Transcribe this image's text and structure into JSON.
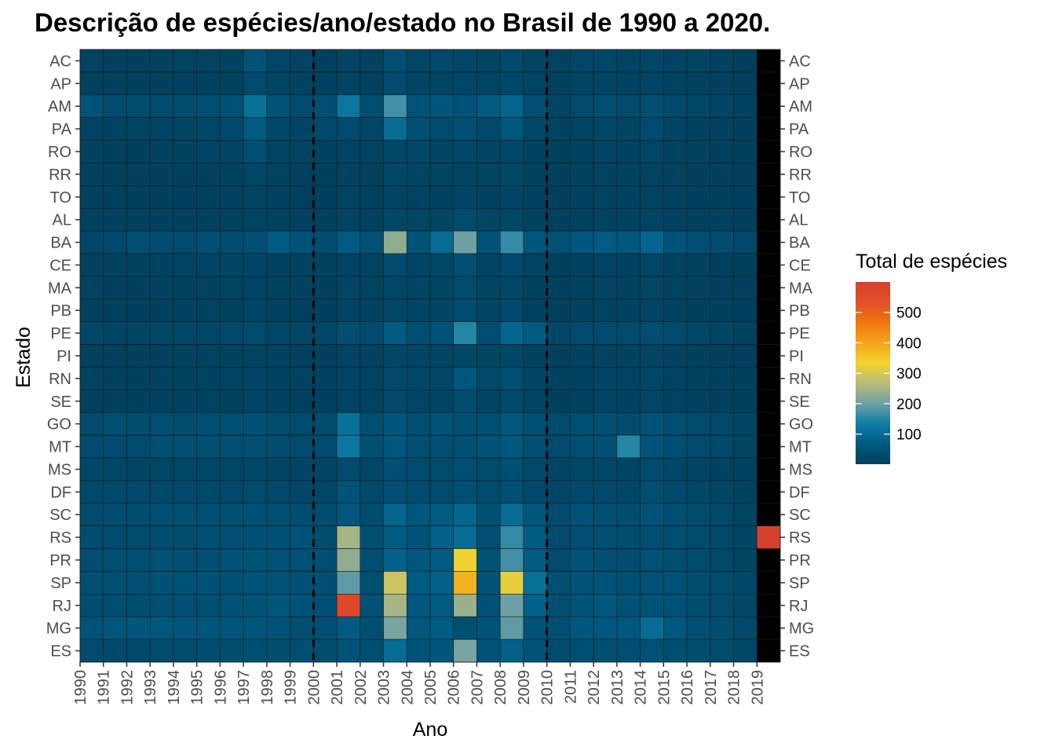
{
  "chart_data": {
    "type": "heatmap",
    "title": "Descrição de espécies/ano/estado no Brasil de 1990 a 2020.",
    "xlabel": "Ano",
    "ylabel": "Estado",
    "x": [
      "1990",
      "1991",
      "1992",
      "1993",
      "1994",
      "1995",
      "1996",
      "1997",
      "1998",
      "1999",
      "2000",
      "2001",
      "2002",
      "2003",
      "2004",
      "2005",
      "2006",
      "2007",
      "2008",
      "2009",
      "2010",
      "2011",
      "2012",
      "2013",
      "2014",
      "2015",
      "2016",
      "2017",
      "2018",
      "2019"
    ],
    "y": [
      "AC",
      "AP",
      "AM",
      "PA",
      "RO",
      "RR",
      "TO",
      "AL",
      "BA",
      "CE",
      "MA",
      "PB",
      "PE",
      "PI",
      "RN",
      "SE",
      "GO",
      "MT",
      "MS",
      "DF",
      "SC",
      "RS",
      "PR",
      "SP",
      "RJ",
      "MG",
      "ES"
    ],
    "values": [
      [
        8,
        6,
        6,
        8,
        9,
        10,
        10,
        50,
        20,
        12,
        6,
        15,
        8,
        40,
        20,
        25,
        20,
        15,
        25,
        15,
        10,
        20,
        20,
        12,
        20,
        12,
        15,
        8,
        4,
        null
      ],
      [
        5,
        5,
        5,
        5,
        6,
        7,
        8,
        30,
        15,
        8,
        6,
        12,
        6,
        30,
        15,
        12,
        20,
        12,
        20,
        12,
        5,
        12,
        15,
        10,
        12,
        10,
        8,
        6,
        3,
        null
      ],
      [
        50,
        30,
        35,
        30,
        35,
        40,
        45,
        110,
        50,
        30,
        40,
        120,
        40,
        170,
        50,
        60,
        50,
        70,
        90,
        40,
        15,
        30,
        40,
        30,
        40,
        25,
        20,
        15,
        10,
        null
      ],
      [
        12,
        10,
        12,
        12,
        15,
        18,
        25,
        70,
        20,
        15,
        25,
        30,
        20,
        100,
        40,
        30,
        40,
        25,
        60,
        20,
        10,
        12,
        20,
        15,
        30,
        15,
        10,
        8,
        5,
        null
      ],
      [
        8,
        6,
        6,
        8,
        10,
        12,
        15,
        40,
        12,
        10,
        8,
        12,
        10,
        20,
        20,
        15,
        20,
        15,
        20,
        10,
        5,
        10,
        12,
        10,
        15,
        10,
        8,
        6,
        5,
        null
      ],
      [
        5,
        5,
        5,
        5,
        6,
        7,
        10,
        20,
        10,
        6,
        6,
        8,
        6,
        20,
        15,
        12,
        15,
        12,
        20,
        8,
        5,
        8,
        10,
        8,
        10,
        8,
        6,
        5,
        4,
        null
      ],
      [
        5,
        5,
        5,
        5,
        6,
        7,
        8,
        10,
        8,
        6,
        6,
        10,
        6,
        15,
        12,
        10,
        15,
        10,
        15,
        8,
        5,
        8,
        10,
        8,
        10,
        8,
        6,
        5,
        4,
        null
      ],
      [
        5,
        5,
        5,
        5,
        6,
        7,
        8,
        10,
        8,
        6,
        6,
        12,
        6,
        20,
        15,
        15,
        30,
        15,
        20,
        10,
        5,
        8,
        10,
        8,
        12,
        8,
        6,
        5,
        4,
        null
      ],
      [
        20,
        25,
        40,
        35,
        30,
        40,
        35,
        40,
        70,
        50,
        35,
        70,
        45,
        230,
        50,
        100,
        200,
        50,
        160,
        60,
        45,
        60,
        70,
        60,
        90,
        50,
        40,
        35,
        25,
        null
      ],
      [
        8,
        8,
        8,
        10,
        12,
        12,
        15,
        15,
        10,
        8,
        8,
        12,
        10,
        30,
        15,
        20,
        40,
        15,
        25,
        12,
        6,
        10,
        12,
        10,
        15,
        10,
        8,
        6,
        5,
        null
      ],
      [
        8,
        6,
        6,
        8,
        10,
        10,
        12,
        12,
        10,
        8,
        6,
        15,
        10,
        20,
        15,
        15,
        30,
        15,
        20,
        10,
        6,
        10,
        12,
        10,
        15,
        10,
        8,
        6,
        5,
        null
      ],
      [
        5,
        5,
        6,
        6,
        8,
        8,
        10,
        12,
        8,
        6,
        6,
        12,
        8,
        20,
        15,
        15,
        30,
        15,
        25,
        10,
        5,
        8,
        10,
        8,
        12,
        8,
        6,
        5,
        4,
        null
      ],
      [
        20,
        15,
        15,
        20,
        20,
        20,
        25,
        30,
        20,
        20,
        20,
        40,
        30,
        70,
        40,
        50,
        150,
        40,
        90,
        70,
        20,
        30,
        30,
        30,
        40,
        30,
        20,
        15,
        10,
        null
      ],
      [
        5,
        5,
        5,
        6,
        8,
        8,
        10,
        10,
        8,
        6,
        6,
        12,
        8,
        20,
        15,
        15,
        20,
        15,
        20,
        10,
        5,
        8,
        10,
        8,
        12,
        8,
        6,
        5,
        4,
        null
      ],
      [
        8,
        6,
        6,
        8,
        10,
        10,
        12,
        15,
        10,
        8,
        8,
        15,
        10,
        25,
        20,
        20,
        60,
        25,
        40,
        15,
        8,
        10,
        15,
        12,
        20,
        12,
        8,
        6,
        5,
        null
      ],
      [
        6,
        6,
        6,
        8,
        8,
        8,
        10,
        12,
        8,
        6,
        6,
        12,
        8,
        25,
        15,
        15,
        35,
        15,
        25,
        12,
        6,
        10,
        12,
        10,
        15,
        10,
        8,
        6,
        5,
        null
      ],
      [
        30,
        40,
        35,
        40,
        35,
        40,
        40,
        45,
        35,
        30,
        30,
        110,
        40,
        60,
        40,
        50,
        40,
        40,
        60,
        40,
        30,
        40,
        40,
        30,
        50,
        40,
        30,
        25,
        15,
        null
      ],
      [
        30,
        30,
        30,
        40,
        40,
        40,
        40,
        40,
        35,
        30,
        30,
        120,
        40,
        60,
        40,
        40,
        40,
        50,
        60,
        40,
        30,
        40,
        40,
        150,
        50,
        40,
        30,
        25,
        15,
        null
      ],
      [
        20,
        20,
        15,
        20,
        20,
        20,
        20,
        20,
        15,
        15,
        15,
        30,
        20,
        40,
        30,
        30,
        40,
        30,
        40,
        25,
        15,
        20,
        20,
        15,
        30,
        20,
        15,
        10,
        8,
        null
      ],
      [
        25,
        25,
        25,
        25,
        25,
        25,
        25,
        30,
        25,
        20,
        20,
        50,
        25,
        40,
        30,
        30,
        40,
        30,
        40,
        25,
        20,
        25,
        25,
        20,
        35,
        25,
        20,
        15,
        10,
        null
      ],
      [
        30,
        35,
        35,
        40,
        40,
        40,
        40,
        45,
        40,
        35,
        35,
        60,
        35,
        90,
        60,
        70,
        90,
        45,
        100,
        60,
        30,
        50,
        40,
        35,
        50,
        40,
        30,
        25,
        15,
        null
      ],
      [
        35,
        30,
        30,
        35,
        35,
        40,
        40,
        45,
        45,
        50,
        35,
        250,
        40,
        70,
        50,
        80,
        100,
        40,
        160,
        70,
        30,
        40,
        40,
        35,
        40,
        40,
        30,
        25,
        15,
        600
      ],
      [
        35,
        40,
        40,
        45,
        40,
        40,
        45,
        50,
        45,
        45,
        40,
        230,
        40,
        80,
        60,
        70,
        330,
        50,
        170,
        70,
        30,
        50,
        40,
        35,
        45,
        40,
        30,
        25,
        15,
        null
      ],
      [
        40,
        40,
        40,
        45,
        45,
        45,
        45,
        50,
        50,
        45,
        40,
        190,
        40,
        290,
        70,
        80,
        380,
        50,
        320,
        110,
        40,
        50,
        50,
        40,
        45,
        45,
        35,
        30,
        20,
        null
      ],
      [
        35,
        35,
        35,
        40,
        40,
        40,
        45,
        50,
        55,
        50,
        40,
        560,
        45,
        250,
        60,
        70,
        240,
        45,
        200,
        80,
        40,
        50,
        60,
        45,
        50,
        45,
        35,
        30,
        20,
        null
      ],
      [
        50,
        55,
        60,
        60,
        55,
        55,
        55,
        55,
        50,
        40,
        40,
        70,
        40,
        210,
        60,
        70,
        40,
        50,
        190,
        50,
        40,
        60,
        60,
        60,
        100,
        60,
        40,
        35,
        25,
        null
      ],
      [
        30,
        25,
        25,
        30,
        30,
        35,
        35,
        40,
        35,
        40,
        35,
        50,
        40,
        100,
        50,
        60,
        210,
        50,
        80,
        50,
        30,
        40,
        40,
        40,
        45,
        40,
        35,
        30,
        20,
        null
      ]
    ],
    "vlines": [
      "2000",
      "2010"
    ],
    "legend": {
      "title": "Total de espécies",
      "position": "right",
      "ticks": [
        100,
        200,
        300,
        400,
        500
      ],
      "range": [
        1,
        600
      ],
      "colors": [
        "#003f5c",
        "#005a82",
        "#0d7ea5",
        "#6fa0a5",
        "#b8bc7b",
        "#f2d32e",
        "#f4a31a",
        "#ef7710",
        "#e24f28",
        "#d9402c"
      ],
      "na_color": "#000000"
    },
    "grid": false
  }
}
